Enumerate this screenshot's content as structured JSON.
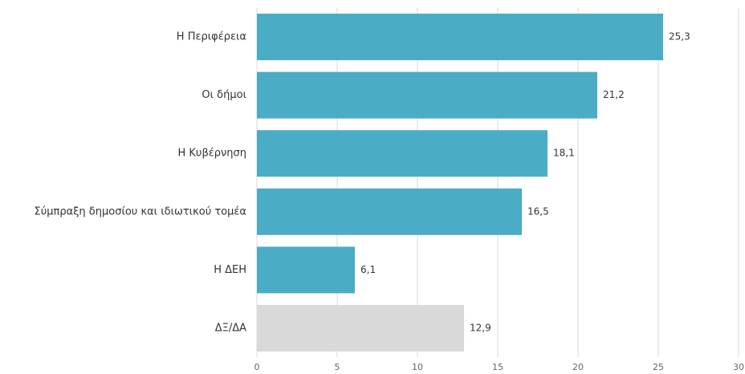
{
  "chart_data": {
    "type": "bar",
    "orientation": "horizontal",
    "categories": [
      "Η Περιφέρεια",
      "Οι δήμοι",
      "Η Κυβέρνηση",
      "Σύμπραξη δημοσίου και ιδιωτικού τομέα",
      "Η ΔΕΗ",
      "ΔΞ/ΔΑ"
    ],
    "values": [
      25.3,
      21.2,
      18.1,
      16.5,
      6.1,
      12.9
    ],
    "value_labels": [
      "25,3",
      "21,2",
      "18,1",
      "16,5",
      "6,1",
      "12,9"
    ],
    "bar_colors": [
      "#4bacc6",
      "#4bacc6",
      "#4bacc6",
      "#4bacc6",
      "#4bacc6",
      "#d9d9d9"
    ],
    "xlim": [
      0,
      30
    ],
    "xticks": [
      0,
      5,
      10,
      15,
      20,
      25,
      30
    ],
    "xtick_labels": [
      "0",
      "5",
      "10",
      "15",
      "20",
      "25",
      "30"
    ],
    "grid": true,
    "grid_color": "#d9d9d9",
    "title": "",
    "xlabel": "",
    "ylabel": ""
  }
}
